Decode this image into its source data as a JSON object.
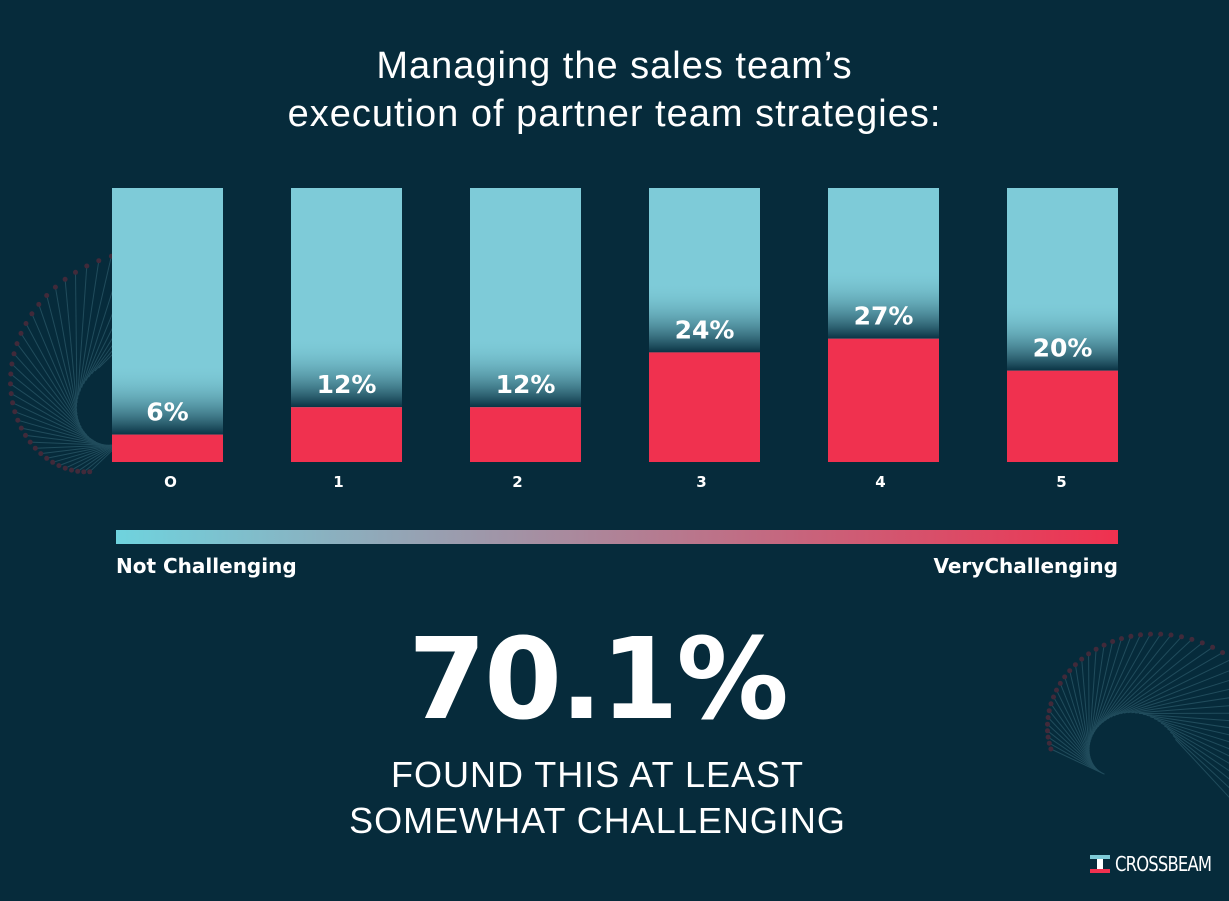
{
  "title_lines": [
    "Managing the sales team’s",
    "execution of partner team strategies:"
  ],
  "chart_data": {
    "type": "bar",
    "title": "Managing the sales team’s execution of partner team strategies:",
    "categories": [
      "O",
      "1",
      "2",
      "3",
      "4",
      "5"
    ],
    "values": [
      6,
      12,
      12,
      24,
      27,
      20
    ],
    "value_labels": [
      "6%",
      "12%",
      "12%",
      "24%",
      "27%",
      "20%"
    ],
    "ylim": [
      0,
      60
    ],
    "grid": false,
    "legend": "none"
  },
  "scale": {
    "left_label": "Not Challenging",
    "right_label": "VeryChallenging"
  },
  "headline": {
    "value": "70.1%",
    "caption_lines": [
      "FOUND THIS AT LEAST",
      "SOMEWHAT CHALLENGING"
    ]
  },
  "brand": {
    "name": "CROSSBEAM"
  },
  "colors": {
    "background": "#062b3b",
    "bar_top": "#7ecbd8",
    "bar_value": "#f0314f",
    "scale_start": "#6fd3de",
    "scale_end": "#f0314f",
    "text": "#ffffff"
  }
}
